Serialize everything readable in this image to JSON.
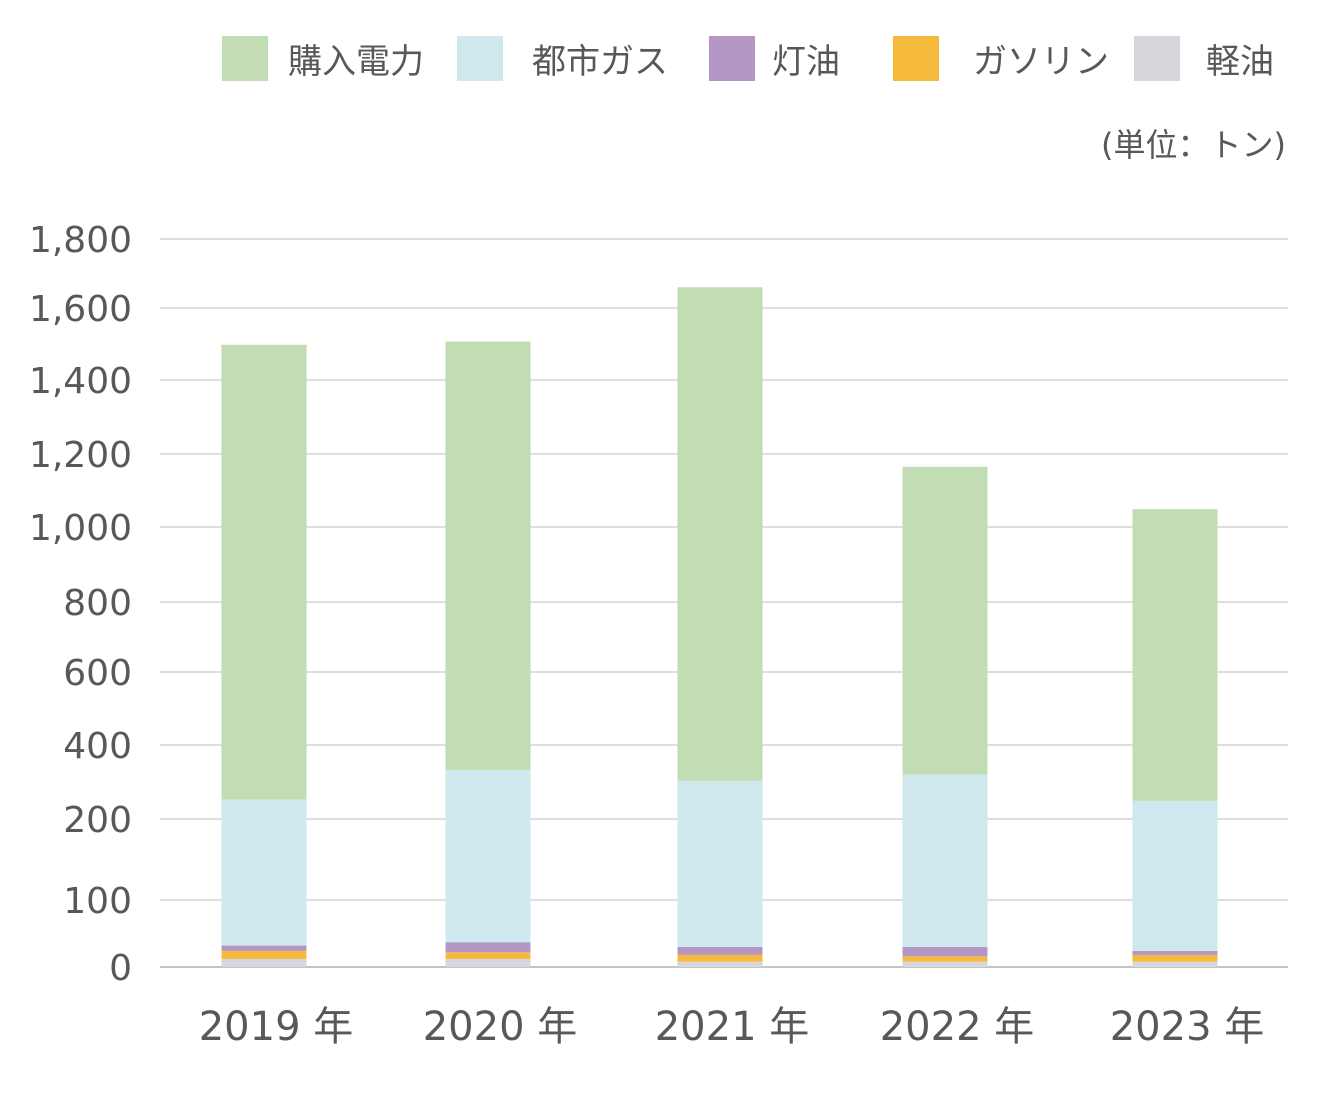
{
  "chart_data": {
    "type": "bar",
    "stacked": true,
    "unit_label": "(単位：トン)",
    "categories": [
      "2019 年",
      "2020 年",
      "2021 年",
      "2022 年",
      "2023 年"
    ],
    "y_ticks": [
      "0",
      "100",
      "200",
      "400",
      "600",
      "800",
      "1,000",
      "1,200",
      "1,400",
      "1,600",
      "1,800"
    ],
    "y_tick_values": [
      0,
      100,
      200,
      400,
      600,
      800,
      1000,
      1200,
      1400,
      1600,
      1800
    ],
    "grid": true,
    "legend_position": "top",
    "series": [
      {
        "name": "軽油",
        "color": "#d6d7dc",
        "values": [
          12,
          12,
          8,
          8,
          8
        ]
      },
      {
        "name": "ガソリン",
        "color": "#f5b93b",
        "values": [
          12,
          10,
          10,
          8,
          10
        ]
      },
      {
        "name": "灯油",
        "color": "#b497c5",
        "values": [
          8,
          15,
          12,
          14,
          6
        ]
      },
      {
        "name": "都市ガス",
        "color": "#cfe8ed",
        "values": [
          221,
          295,
          273,
          290,
          225
        ]
      },
      {
        "name": "購入電力",
        "color": "#c2dcb3",
        "values": [
          1245,
          1175,
          1357,
          845,
          800
        ]
      }
    ]
  }
}
